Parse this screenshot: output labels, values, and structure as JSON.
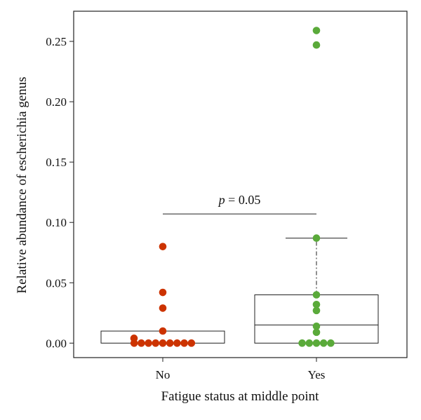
{
  "chart_data": {
    "type": "box",
    "xlabel": "Fatigue status at middle point",
    "ylabel": "Relative abundance of escherichia genus",
    "ylim": [
      -0.012,
      0.275
    ],
    "yticks": [
      0.0,
      0.05,
      0.1,
      0.15,
      0.2,
      0.25
    ],
    "ytick_labels": [
      "0.00",
      "0.05",
      "0.10",
      "0.15",
      "0.20",
      "0.25"
    ],
    "categories": [
      "No",
      "Yes"
    ],
    "groups": [
      {
        "category": "No",
        "color": "#cc3300",
        "box": {
          "q1": 0.0,
          "median": 0.0,
          "q3": 0.01,
          "whisker_low": 0.0,
          "whisker_high": 0.01
        },
        "points": [
          0.08,
          0.042,
          0.029,
          0.01,
          0.004,
          0,
          0,
          0,
          0,
          0,
          0,
          0,
          0,
          0
        ]
      },
      {
        "category": "Yes",
        "color": "#5aaa3a",
        "box": {
          "q1": 0.0,
          "median": 0.015,
          "q3": 0.04,
          "whisker_low": 0.0,
          "whisker_high": 0.087
        },
        "points": [
          0.259,
          0.247,
          0.087,
          0.04,
          0.032,
          0.027,
          0.014,
          0.009,
          0,
          0,
          0,
          0,
          0
        ]
      }
    ],
    "annotation": {
      "p_symbol": "p",
      "text": " = 0.05"
    }
  }
}
